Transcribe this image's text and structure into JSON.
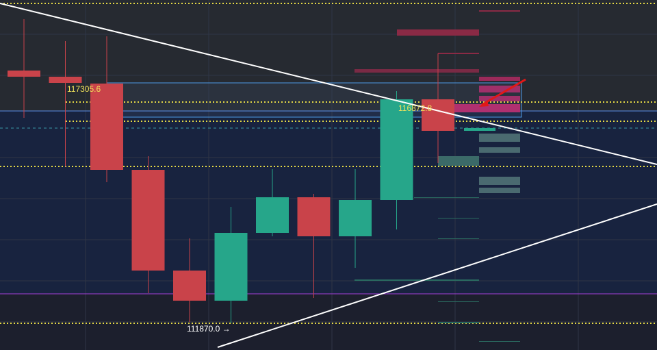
{
  "chart_data": {
    "type": "candlestick",
    "series": [
      {
        "name": "BTC",
        "open": [
          117600.7,
          117460.9,
          117305.6,
          115348.8,
          113065.9,
          112382.6,
          113920.1,
          114727.6,
          113842.4,
          114665.5,
          116948.4
        ],
        "high": [
          118765.4,
          118268.5,
          118377.2,
          115659.4,
          113795.8,
          114510.2,
          115364.3,
          114805.3,
          115364.3,
          117134.8,
          117988.9
        ],
        "low": [
          116529.1,
          115426.5,
          115069.3,
          112553.4,
          111901.2,
          111870.0,
          113842.4,
          112444.7,
          113128.0,
          113997.7,
          115504.1
        ],
        "close": [
          117460.9,
          117321.1,
          115348.8,
          113065.9,
          112382.6,
          113920.1,
          114727.6,
          113842.4,
          114665.5,
          116948.4,
          116234.0
        ],
        "up_color": "#26a68a",
        "down_color": "#c9434a"
      }
    ],
    "ylim": [
      111264.4,
      119200.3
    ],
    "annotations": [
      {
        "value": 117305.6,
        "label": "117305.6",
        "color": "#f2e35a"
      },
      {
        "value": 116872.8,
        "label": "116872.8",
        "color": "#f2e35a"
      },
      {
        "value": 111870.0,
        "label": "111870.0 →",
        "color": "#ffffff"
      }
    ]
  }
}
